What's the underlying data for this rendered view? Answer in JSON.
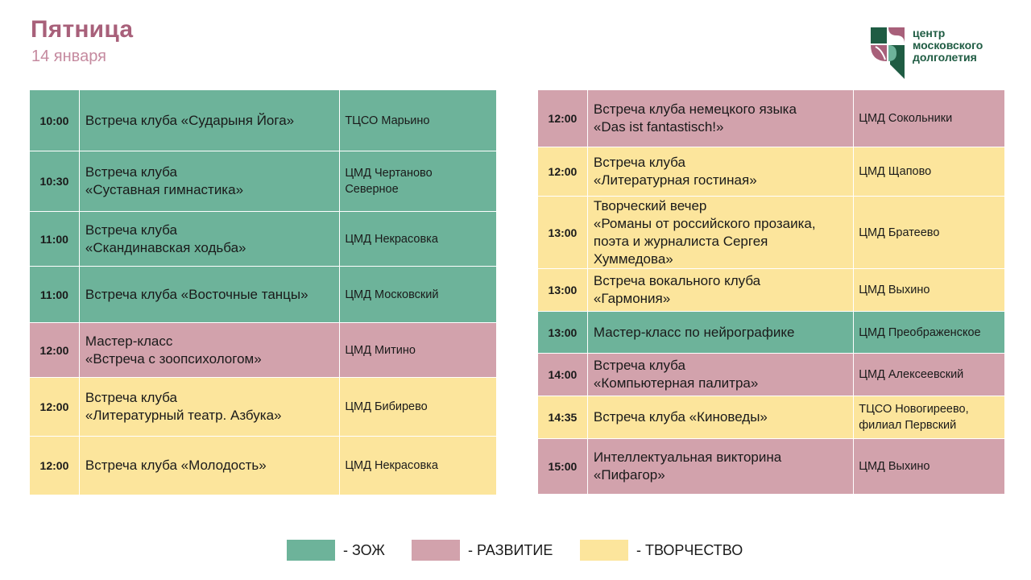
{
  "header": {
    "title": "Пятница",
    "date": "14 января"
  },
  "logo": {
    "line1": "центр",
    "line2": "московского",
    "line3": "долголетия"
  },
  "colors": {
    "zozh": "#6db39a",
    "razvitie": "#d2a2ac",
    "tvorchestvo": "#fce59c"
  },
  "left": [
    {
      "time": "10:00",
      "event": [
        "Встреча клуба «Сударыня Йога»"
      ],
      "place": [
        "ТЦСО Марьино"
      ],
      "category": "zozh"
    },
    {
      "time": "10:30",
      "event": [
        "Встреча клуба",
        "«Суставная гимнастика»"
      ],
      "place": [
        "ЦМД Чертаново",
        "Северное"
      ],
      "category": "zozh"
    },
    {
      "time": "11:00",
      "event": [
        "Встреча клуба",
        "«Скандинавская ходьба»"
      ],
      "place": [
        "ЦМД Некрасовка"
      ],
      "category": "zozh"
    },
    {
      "time": "11:00",
      "event": [
        "Встреча клуба «Восточные танцы»"
      ],
      "place": [
        "ЦМД Московский"
      ],
      "category": "zozh"
    },
    {
      "time": "12:00",
      "event": [
        "Мастер-класс",
        "«Встреча с зоопсихологом»"
      ],
      "place": [
        "ЦМД Митино"
      ],
      "category": "razv"
    },
    {
      "time": "12:00",
      "event": [
        "Встреча клуба",
        "«Литературный театр. Азбука»"
      ],
      "place": [
        "ЦМД Бибирево"
      ],
      "category": "tvor"
    },
    {
      "time": "12:00",
      "event": [
        "Встреча клуба «Молодость»"
      ],
      "place": [
        "ЦМД Некрасовка"
      ],
      "category": "tvor"
    }
  ],
  "right": [
    {
      "time": "12:00",
      "event": [
        "Встреча клуба немецкого языка",
        "«Das ist fantastisch!»"
      ],
      "place": [
        "ЦМД Сокольники"
      ],
      "category": "razv"
    },
    {
      "time": "12:00",
      "event": [
        "Встреча клуба",
        "«Литературная гостиная»"
      ],
      "place": [
        "ЦМД Щапово"
      ],
      "category": "tvor"
    },
    {
      "time": "13:00",
      "event": [
        "Творческий вечер",
        "«Романы от российского прозаика,",
        "поэта и журналиста Сергея",
        "Хуммедова»"
      ],
      "place": [
        "ЦМД Братеево"
      ],
      "category": "tvor"
    },
    {
      "time": "13:00",
      "event": [
        "Встреча вокального клуба",
        "«Гармония»"
      ],
      "place": [
        "ЦМД Выхино"
      ],
      "category": "tvor"
    },
    {
      "time": "13:00",
      "event": [
        "Мастер-класс по нейрографике"
      ],
      "place": [
        "ЦМД Преображенское"
      ],
      "category": "zozh"
    },
    {
      "time": "14:00",
      "event": [
        "Встреча клуба",
        "«Компьютерная палитра»"
      ],
      "place": [
        "ЦМД Алексеевский"
      ],
      "category": "razv"
    },
    {
      "time": "14:35",
      "event": [
        "Встреча клуба «Киноведы»"
      ],
      "place": [
        "ТЦСО Новогиреево,",
        "филиал Первский"
      ],
      "category": "tvor"
    },
    {
      "time": "15:00",
      "event": [
        "Интеллектуальная викторина",
        "«Пифагор»"
      ],
      "place": [
        "ЦМД Выхино"
      ],
      "category": "razv"
    }
  ],
  "legend": [
    {
      "label": "- ЗОЖ",
      "category": "zozh"
    },
    {
      "label": "- РАЗВИТИЕ",
      "category": "razv"
    },
    {
      "label": "- ТВОРЧЕСТВО",
      "category": "tvor"
    }
  ]
}
